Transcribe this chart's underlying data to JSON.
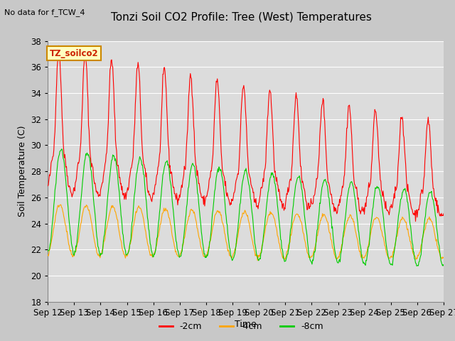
{
  "title": "Tonzi Soil CO2 Profile: Tree (West) Temperatures",
  "subtitle": "No data for f_TCW_4",
  "ylabel": "Soil Temperature (C)",
  "xlabel": "Time",
  "ylim": [
    18,
    38
  ],
  "legend_label": "TZ_soilco2",
  "series_labels": [
    "-2cm",
    "-4cm",
    "-8cm"
  ],
  "series_colors": [
    "#ff0000",
    "#ffa500",
    "#00cc00"
  ],
  "xtick_labels": [
    "Sep 12",
    "Sep 13",
    "Sep 14",
    "Sep 15",
    "Sep 16",
    "Sep 17",
    "Sep 18",
    "Sep 19",
    "Sep 20",
    "Sep 21",
    "Sep 22",
    "Sep 23",
    "Sep 24",
    "Sep 25",
    "Sep 26",
    "Sep 27"
  ],
  "n_days": 15,
  "samples_per_day": 48,
  "background_color": "#d0d0d0",
  "plot_bg_color": "#dcdcdc"
}
